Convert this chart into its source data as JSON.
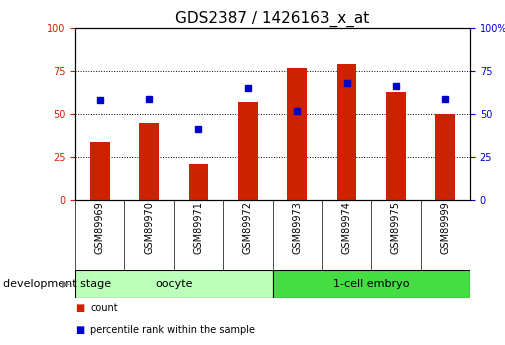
{
  "title": "GDS2387 / 1426163_x_at",
  "samples": [
    "GSM89969",
    "GSM89970",
    "GSM89971",
    "GSM89972",
    "GSM89973",
    "GSM89974",
    "GSM89975",
    "GSM89999"
  ],
  "counts": [
    34,
    45,
    21,
    57,
    77,
    79,
    63,
    50
  ],
  "percentiles": [
    58,
    59,
    41,
    65,
    52,
    68,
    66,
    59
  ],
  "groups": [
    {
      "label": "oocyte",
      "start": 0,
      "end": 3,
      "color": "#BBFFBB"
    },
    {
      "label": "1-cell embryo",
      "start": 4,
      "end": 7,
      "color": "#44DD44"
    }
  ],
  "bar_color": "#CC2200",
  "dot_color": "#0000CC",
  "ylim": [
    0,
    100
  ],
  "yticks": [
    0,
    25,
    50,
    75,
    100
  ],
  "bg_color": "#FFFFFF",
  "label_area_color": "#CCCCCC",
  "xlabel_group": "development stage",
  "legend_count": "count",
  "legend_pct": "percentile rank within the sample",
  "title_fontsize": 11,
  "tick_fontsize": 7,
  "label_fontsize": 8,
  "group_fontsize": 8
}
